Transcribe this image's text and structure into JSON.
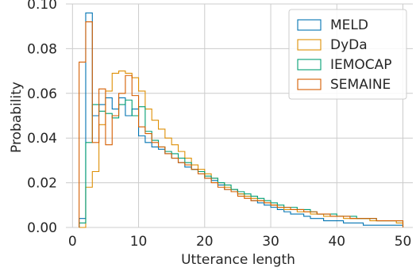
{
  "chart_data": {
    "type": "histogram-step",
    "xlabel": "Utterance length",
    "ylabel": "Probability",
    "xlim": [
      -1,
      51.5
    ],
    "ylim": [
      0,
      0.1
    ],
    "xticks": [
      0,
      10,
      20,
      30,
      40,
      50
    ],
    "xtick_labels": [
      "0",
      "10",
      "20",
      "30",
      "40",
      "50"
    ],
    "yticks": [
      0,
      0.02,
      0.04,
      0.06,
      0.08,
      0.1
    ],
    "ytick_labels": [
      "0.00",
      "0.02",
      "0.04",
      "0.06",
      "0.08",
      "0.10"
    ],
    "grid": true,
    "legend_position": "top-right",
    "bin_width": 1,
    "bin_start": 1,
    "series": [
      {
        "name": "MELD",
        "color": "#0173b2",
        "values": [
          0.004,
          0.096,
          0.05,
          0.055,
          0.058,
          0.053,
          0.058,
          0.05,
          0.053,
          0.041,
          0.038,
          0.036,
          0.035,
          0.033,
          0.031,
          0.029,
          0.027,
          0.026,
          0.025,
          0.022,
          0.021,
          0.019,
          0.017,
          0.017,
          0.015,
          0.014,
          0.012,
          0.011,
          0.01,
          0.009,
          0.008,
          0.007,
          0.006,
          0.006,
          0.005,
          0.004,
          0.004,
          0.003,
          0.003,
          0.003,
          0.002,
          0.002,
          0.002,
          0.001,
          0.001,
          0.001,
          0.001,
          0.001,
          0.001
        ]
      },
      {
        "name": "DyDa",
        "color": "#de8f05",
        "values": [
          0.0,
          0.018,
          0.025,
          0.046,
          0.061,
          0.069,
          0.07,
          0.069,
          0.067,
          0.061,
          0.053,
          0.048,
          0.044,
          0.04,
          0.037,
          0.034,
          0.031,
          0.028,
          0.026,
          0.024,
          0.022,
          0.02,
          0.018,
          0.017,
          0.015,
          0.014,
          0.013,
          0.012,
          0.011,
          0.01,
          0.009,
          0.008,
          0.008,
          0.007,
          0.007,
          0.006,
          0.006,
          0.005,
          0.005,
          0.005,
          0.004,
          0.004,
          0.004,
          0.004,
          0.003,
          0.003,
          0.003,
          0.003,
          0.002
        ]
      },
      {
        "name": "IEMOCAP",
        "color": "#029e73",
        "values": [
          0.002,
          0.038,
          0.055,
          0.052,
          0.051,
          0.049,
          0.055,
          0.057,
          0.05,
          0.054,
          0.043,
          0.039,
          0.036,
          0.034,
          0.033,
          0.031,
          0.029,
          0.026,
          0.025,
          0.023,
          0.022,
          0.02,
          0.019,
          0.017,
          0.016,
          0.015,
          0.014,
          0.013,
          0.012,
          0.011,
          0.01,
          0.009,
          0.009,
          0.008,
          0.008,
          0.007,
          0.006,
          0.006,
          0.006,
          0.005,
          0.005,
          0.005,
          0.004,
          0.004,
          0.004,
          0.003,
          0.003,
          0.003,
          0.003
        ]
      },
      {
        "name": "SEMAINE",
        "color": "#d55e00",
        "values": [
          0.074,
          0.092,
          0.038,
          0.062,
          0.037,
          0.05,
          0.06,
          0.068,
          0.059,
          0.045,
          0.042,
          0.038,
          0.036,
          0.033,
          0.031,
          0.029,
          0.028,
          0.026,
          0.024,
          0.022,
          0.02,
          0.018,
          0.017,
          0.016,
          0.014,
          0.013,
          0.012,
          0.012,
          0.011,
          0.01,
          0.009,
          0.009,
          0.008,
          0.008,
          0.007,
          0.007,
          0.006,
          0.006,
          0.005,
          0.005,
          0.005,
          0.004,
          0.004,
          0.004,
          0.004,
          0.003,
          0.003,
          0.003,
          0.003
        ]
      }
    ]
  }
}
